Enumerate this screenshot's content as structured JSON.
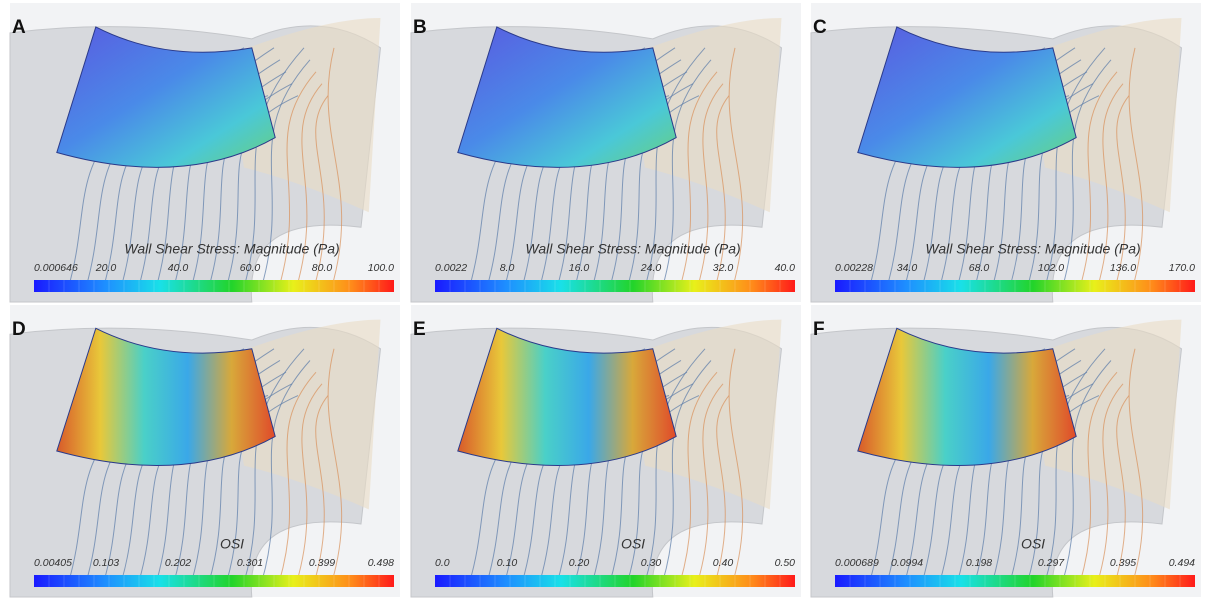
{
  "panels": [
    {
      "label": "A",
      "title": "Wall Shear Stress: Magnitude (Pa)",
      "ticks": [
        "0.000646",
        "20.0",
        "40.0",
        "60.0",
        "80.0",
        "100.0"
      ]
    },
    {
      "label": "B",
      "title": "Wall Shear Stress: Magnitude (Pa)",
      "ticks": [
        "0.0022",
        "8.0",
        "16.0",
        "24.0",
        "32.0",
        "40.0"
      ]
    },
    {
      "label": "C",
      "title": "Wall Shear Stress: Magnitude (Pa)",
      "ticks": [
        "0.00228",
        "34.0",
        "68.0",
        "102.0",
        "136.0",
        "170.0"
      ]
    },
    {
      "label": "D",
      "title": "OSI",
      "ticks": [
        "0.00405",
        "0.103",
        "0.202",
        "0.301",
        "0.399",
        "0.498"
      ]
    },
    {
      "label": "E",
      "title": "OSI",
      "ticks": [
        "0.0",
        "0.10",
        "0.20",
        "0.30",
        "0.40",
        "0.50"
      ]
    },
    {
      "label": "F",
      "title": "OSI",
      "ticks": [
        "0.000689",
        "0.0994",
        "0.198",
        "0.297",
        "0.395",
        "0.494"
      ]
    }
  ]
}
